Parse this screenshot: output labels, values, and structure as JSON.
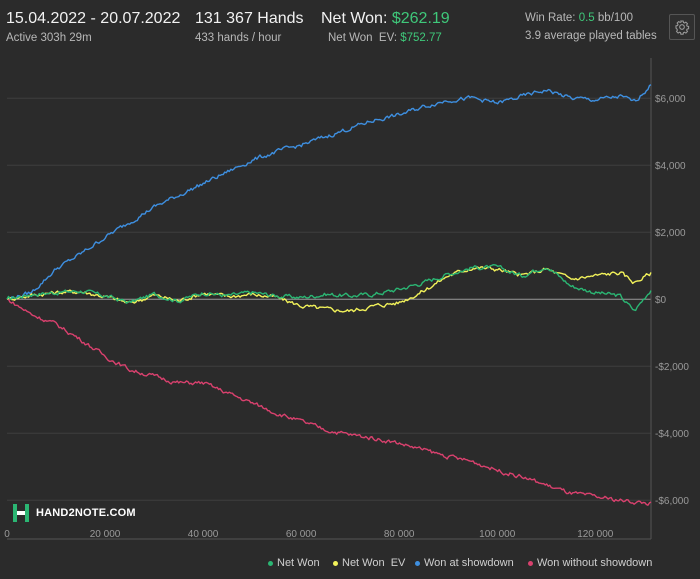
{
  "header": {
    "date_range": "15.04.2022 - 20.07.2022",
    "active": "Active 303h 29m",
    "hands": "131 367 Hands",
    "hands_per_hour": "433 hands / hour",
    "net_won_label": "Net Won:",
    "net_won_value": "$262.19",
    "net_won_ev_label": "Net Won  EV:",
    "net_won_ev_value": "$752.77",
    "win_rate_label": "Win Rate:",
    "win_rate_value": "0.5",
    "win_rate_unit": "bb/100",
    "avg_tables": "3.9 average played tables"
  },
  "settings_icon": "gear-icon",
  "logo": {
    "text": "HAND2NOTE.COM",
    "icon": "h-logo-icon"
  },
  "colors": {
    "background": "#2b2b2b",
    "grid": "#3e3e3e",
    "zero_line": "#9a9a9a",
    "net_won": "#2bb673",
    "net_won_ev": "#f2f25a",
    "won_showdown": "#3e8fe0",
    "won_without_showdown": "#d9416e",
    "accent_green": "#3fc87a"
  },
  "chart_data": {
    "type": "line",
    "x_ticks": [
      "0",
      "20 000",
      "40 000",
      "60 000",
      "80 000",
      "100 000",
      "120 000"
    ],
    "x_tick_values": [
      0,
      20000,
      40000,
      60000,
      80000,
      100000,
      120000
    ],
    "y_ticks": [
      "$6,000",
      "$4,000",
      "$2,000",
      "$0",
      "-$2,000",
      "-$4,000",
      "-$6,000"
    ],
    "y_tick_values": [
      6000,
      4000,
      2000,
      0,
      -2000,
      -4000,
      -6000
    ],
    "xlim": [
      0,
      131367
    ],
    "ylim": [
      -6800,
      7200
    ],
    "grid": true,
    "legend_position": "bottom-right",
    "x": [
      0,
      5000,
      10000,
      15000,
      20000,
      25000,
      30000,
      35000,
      40000,
      45000,
      50000,
      55000,
      60000,
      65000,
      70000,
      75000,
      80000,
      85000,
      90000,
      95000,
      100000,
      105000,
      110000,
      115000,
      120000,
      125000,
      128000,
      131367
    ],
    "series": [
      {
        "name": "Net Won",
        "color_key": "net_won",
        "values": [
          0,
          150,
          200,
          250,
          100,
          -100,
          150,
          -50,
          200,
          100,
          200,
          100,
          50,
          150,
          100,
          150,
          300,
          500,
          750,
          950,
          950,
          700,
          1000,
          400,
          200,
          100,
          -350,
          300
        ]
      },
      {
        "name": "Net Won  EV",
        "color_key": "net_won_ev",
        "values": [
          0,
          120,
          200,
          230,
          80,
          -120,
          120,
          -50,
          180,
          80,
          150,
          50,
          -200,
          -300,
          -350,
          -200,
          -100,
          250,
          700,
          950,
          900,
          700,
          900,
          600,
          700,
          800,
          500,
          780
        ]
      },
      {
        "name": "Won at showdown",
        "color_key": "won_showdown",
        "values": [
          0,
          200,
          900,
          1350,
          1850,
          2300,
          2750,
          3100,
          3450,
          3800,
          4150,
          4400,
          4600,
          4850,
          5100,
          5350,
          5500,
          5750,
          5950,
          6000,
          5850,
          6050,
          6250,
          6000,
          5950,
          6050,
          5900,
          6400
        ]
      },
      {
        "name": "Won without showdown",
        "color_key": "won_without_showdown",
        "values": [
          0,
          -450,
          -750,
          -1200,
          -1700,
          -2100,
          -2300,
          -2500,
          -2500,
          -2800,
          -3100,
          -3400,
          -3650,
          -3900,
          -4050,
          -4150,
          -4300,
          -4500,
          -4700,
          -4850,
          -5100,
          -5300,
          -5550,
          -5800,
          -5900,
          -6000,
          -6050,
          -6100
        ]
      }
    ]
  }
}
